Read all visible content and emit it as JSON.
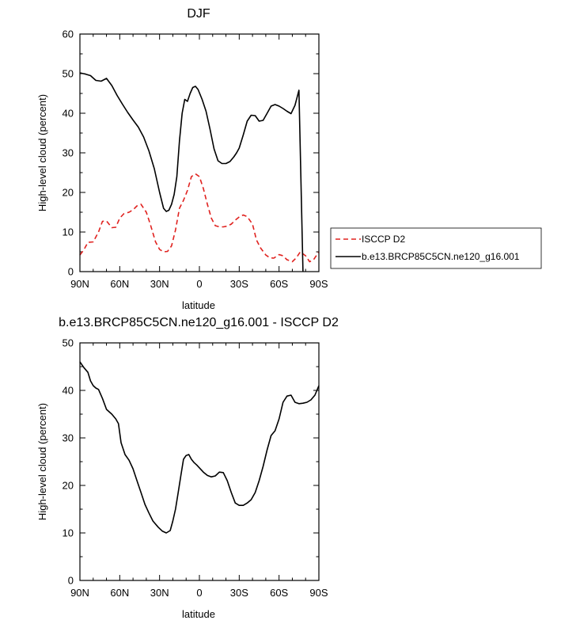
{
  "chart_data": [
    {
      "type": "line",
      "title": "DJF",
      "xlabel": "latitude",
      "ylabel": "High-level cloud (percent)",
      "xlim": [
        90,
        -90
      ],
      "ylim": [
        0,
        60
      ],
      "x_ticks": [
        90,
        60,
        30,
        0,
        -30,
        -60,
        -90
      ],
      "x_tick_labels": [
        "90N",
        "60N",
        "30N",
        "0",
        "30S",
        "60S",
        "90S"
      ],
      "y_ticks": [
        0,
        10,
        20,
        30,
        40,
        50,
        60
      ],
      "y_tick_labels": [
        "0",
        "10",
        "20",
        "30",
        "40",
        "50",
        "60"
      ],
      "legend": {
        "placement": "right"
      },
      "series": [
        {
          "name": "ISCCP D2",
          "color": "#e0221f",
          "dash": "dashed",
          "x": [
            90,
            87,
            84,
            80,
            76,
            73,
            70,
            66,
            63,
            60,
            57,
            53,
            50,
            47,
            44,
            40,
            37,
            33,
            30,
            27,
            24,
            21,
            18,
            15,
            12,
            9,
            6,
            3,
            0,
            -3,
            -6,
            -9,
            -12,
            -15,
            -18,
            -21,
            -24,
            -27,
            -30,
            -33,
            -36,
            -40,
            -43,
            -46,
            -50,
            -53,
            -56,
            -60,
            -63,
            -66,
            -70,
            -73,
            -76,
            -80,
            -83,
            -86,
            -90
          ],
          "y": [
            4.2,
            5.5,
            7.4,
            7.5,
            10.0,
            12.7,
            12.8,
            11.1,
            11.2,
            13.5,
            14.6,
            15.0,
            15.6,
            16.6,
            17.0,
            15.0,
            12.0,
            7.5,
            5.6,
            5.0,
            5.1,
            6.5,
            10.5,
            16.0,
            18.0,
            20.5,
            24.0,
            24.7,
            24.0,
            21.0,
            17.0,
            13.5,
            11.6,
            11.3,
            11.3,
            11.5,
            12.0,
            13.0,
            13.8,
            14.3,
            13.9,
            12.0,
            8.0,
            6.0,
            4.2,
            3.5,
            3.4,
            4.3,
            4.0,
            3.0,
            2.5,
            3.5,
            5.0,
            4.0,
            2.5,
            3.0,
            5.0
          ]
        },
        {
          "name": "b.e13.BRCP85C5CN.ne120_g16.001",
          "color": "#000000",
          "dash": "solid",
          "x": [
            90,
            86,
            82,
            78,
            74,
            70,
            66,
            62,
            58,
            54,
            50,
            46,
            42,
            38,
            34,
            30,
            27,
            25,
            23,
            21,
            19,
            17,
            15,
            13,
            11,
            9,
            7,
            5,
            3,
            1,
            -2,
            -5,
            -8,
            -11,
            -14,
            -17,
            -20,
            -23,
            -26,
            -28,
            -30,
            -33,
            -36,
            -39,
            -42,
            -45,
            -48,
            -51,
            -54,
            -57,
            -60,
            -63,
            -66,
            -69,
            -72,
            -75,
            -78,
            -81,
            -84,
            -87,
            -90
          ],
          "y": [
            50.2,
            49.9,
            49.5,
            48.3,
            48.1,
            48.8,
            47.0,
            44.5,
            42.3,
            40.2,
            38.3,
            36.5,
            34.0,
            30.5,
            26.0,
            20.0,
            16.0,
            15.2,
            15.5,
            17.0,
            19.5,
            24.0,
            33.0,
            40.0,
            43.5,
            43.0,
            45.0,
            46.5,
            46.8,
            46.0,
            43.5,
            40.5,
            36.0,
            31.0,
            28.0,
            27.3,
            27.3,
            27.8,
            29.0,
            30.0,
            31.2,
            34.5,
            38.0,
            39.5,
            39.4,
            38.0,
            38.2,
            40.0,
            41.8,
            42.2,
            41.8,
            41.2,
            40.5,
            39.9,
            42.0,
            45.8,
            0,
            0,
            0,
            0,
            0
          ]
        }
      ]
    },
    {
      "type": "line",
      "title": "b.e13.BRCP85C5CN.ne120_g16.001 - ISCCP D2",
      "xlabel": "latitude",
      "ylabel": "High-level cloud (percent)",
      "xlim": [
        90,
        -90
      ],
      "ylim": [
        0,
        50
      ],
      "x_ticks": [
        90,
        60,
        30,
        0,
        -30,
        -60,
        -90
      ],
      "x_tick_labels": [
        "90N",
        "60N",
        "30N",
        "0",
        "30S",
        "60S",
        "90S"
      ],
      "y_ticks": [
        0,
        10,
        20,
        30,
        40,
        50
      ],
      "y_tick_labels": [
        "0",
        "10",
        "20",
        "30",
        "40",
        "50"
      ],
      "series": [
        {
          "color": "#000000",
          "dash": "solid",
          "x": [
            90,
            87,
            84,
            82,
            80,
            78,
            76,
            73,
            70,
            66,
            63,
            61,
            59,
            56,
            53,
            50,
            47,
            44,
            41,
            38,
            35,
            31,
            28,
            25,
            22,
            20,
            18,
            16,
            14,
            12,
            10,
            8,
            6,
            4,
            2,
            0,
            -3,
            -6,
            -9,
            -12,
            -15,
            -18,
            -21,
            -24,
            -27,
            -30,
            -33,
            -36,
            -39,
            -42,
            -45,
            -48,
            -51,
            -54,
            -57,
            -60,
            -63,
            -66,
            -69,
            -72,
            -75,
            -78,
            -81,
            -84,
            -87,
            -90
          ],
          "y": [
            46.0,
            44.8,
            43.8,
            42.0,
            41.0,
            40.5,
            40.2,
            38.3,
            36.0,
            35.0,
            34.0,
            33.0,
            29.0,
            26.5,
            25.3,
            23.5,
            21.0,
            18.5,
            16.0,
            14.2,
            12.5,
            11.2,
            10.4,
            10.0,
            10.5,
            12.5,
            15.0,
            18.5,
            22.0,
            25.5,
            26.3,
            26.5,
            25.5,
            24.8,
            24.3,
            23.7,
            22.8,
            22.1,
            21.8,
            22.0,
            22.8,
            22.7,
            21.0,
            18.5,
            16.3,
            15.8,
            15.8,
            16.3,
            17.0,
            18.5,
            21.0,
            24.0,
            27.5,
            30.5,
            31.5,
            34.0,
            37.5,
            38.8,
            39.0,
            37.5,
            37.2,
            37.3,
            37.5,
            38.0,
            39.0,
            41.0
          ]
        }
      ]
    }
  ]
}
